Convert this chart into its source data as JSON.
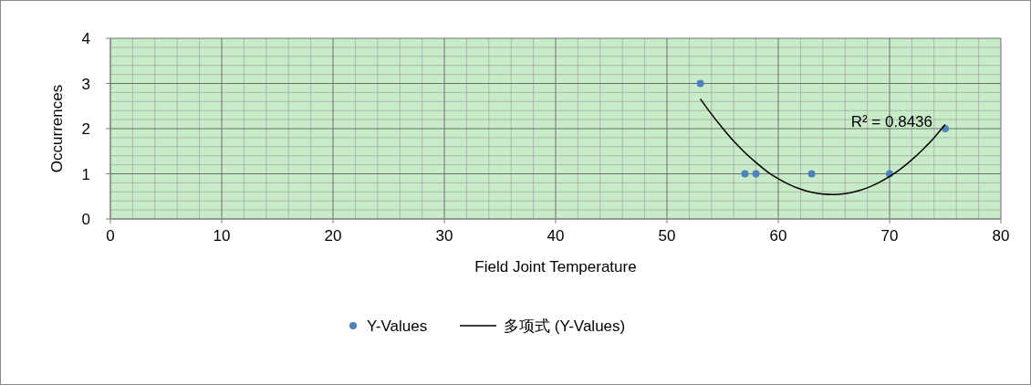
{
  "chart_data": {
    "type": "scatter",
    "xlabel": "Field Joint Temperature",
    "ylabel": "Occurrences",
    "xlim": [
      0,
      80
    ],
    "xticks": [
      0,
      10,
      20,
      30,
      40,
      50,
      60,
      70,
      80
    ],
    "ylim": [
      0,
      4
    ],
    "yticks": [
      0,
      1,
      2,
      3,
      4
    ],
    "grid": true,
    "legend": "bottom",
    "marker": "circle",
    "series": [
      {
        "name": "Y-Values",
        "color": "#4f81bd",
        "x": [
          53,
          57,
          58,
          63,
          70,
          75
        ],
        "values": [
          3,
          1,
          1,
          1,
          1,
          2
        ]
      },
      {
        "name": "多项式 (Y-Values)",
        "type": "line",
        "marker": "none",
        "color": "#000000",
        "line_style": "solid",
        "x": [
          53,
          54,
          55,
          56,
          57,
          58,
          59,
          60,
          61,
          62,
          63,
          64,
          65,
          66,
          67,
          68,
          69,
          70,
          71,
          72,
          73,
          74,
          75
        ],
        "values": [
          2.66,
          2.32,
          2.01,
          1.72,
          1.47,
          1.25,
          1.05,
          0.89,
          0.76,
          0.66,
          0.59,
          0.55,
          0.54,
          0.56,
          0.61,
          0.69,
          0.8,
          0.94,
          1.11,
          1.31,
          1.54,
          1.8,
          2.09
        ]
      }
    ],
    "annotations": [
      "R² = 0.8436"
    ]
  }
}
